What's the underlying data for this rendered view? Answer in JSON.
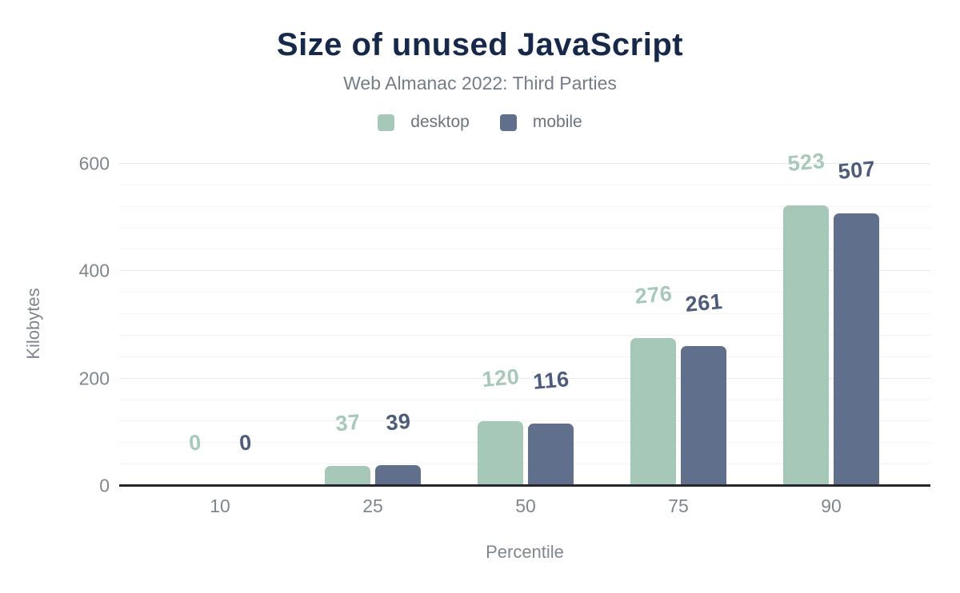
{
  "chart_data": {
    "type": "bar",
    "title": "Size of unused JavaScript",
    "subtitle": "Web Almanac 2022: Third Parties",
    "xlabel": "Percentile",
    "ylabel": "Kilobytes",
    "categories": [
      "10",
      "25",
      "50",
      "75",
      "90"
    ],
    "series": [
      {
        "name": "desktop",
        "values": [
          0,
          37,
          120,
          276,
          523
        ],
        "color": "#a6c8b9",
        "label_color": "#a6c9ba"
      },
      {
        "name": "mobile",
        "values": [
          0,
          39,
          116,
          261,
          507
        ],
        "color": "#60708c",
        "label_color": "#4d5c7c"
      }
    ],
    "ylim": [
      0,
      600
    ],
    "yticks": [
      0,
      200,
      400,
      600
    ],
    "minor_grid_step": 40,
    "grid": "horizontal",
    "legend_position": "top",
    "value_labels": true,
    "axis_line_color": "#24272e",
    "title_color": "#16294b"
  }
}
